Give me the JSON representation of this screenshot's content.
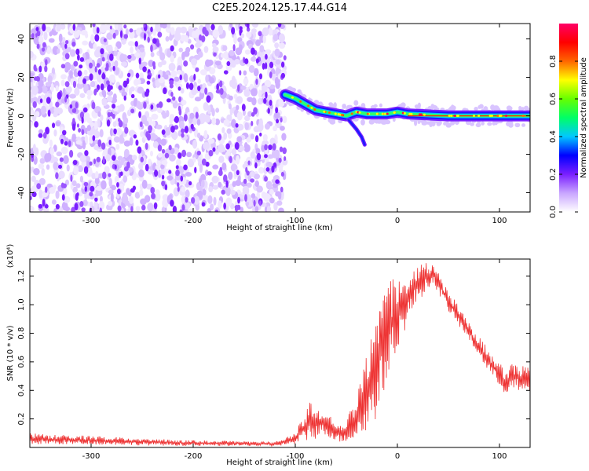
{
  "title": "C2E5.2024.125.17.44.G14",
  "chart_data": [
    {
      "type": "heatmap",
      "xlabel": "Height of straight line (km)",
      "ylabel": "Frequency (Hz)",
      "xlim": [
        -360,
        130
      ],
      "ylim": [
        -50,
        48
      ],
      "x_ticks": [
        -300,
        -200,
        -100,
        0,
        100
      ],
      "y_ticks": [
        -40,
        -20,
        0,
        20,
        40
      ],
      "noise_region_x": [
        -360,
        -110
      ],
      "signal_trace": [
        {
          "x": -110,
          "y": 11
        },
        {
          "x": -100,
          "y": 9
        },
        {
          "x": -90,
          "y": 6
        },
        {
          "x": -80,
          "y": 3
        },
        {
          "x": -70,
          "y": 2
        },
        {
          "x": -60,
          "y": 1
        },
        {
          "x": -50,
          "y": 0
        },
        {
          "x": -40,
          "y": 2
        },
        {
          "x": -30,
          "y": 1
        },
        {
          "x": -20,
          "y": 1
        },
        {
          "x": -10,
          "y": 1
        },
        {
          "x": 0,
          "y": 2
        },
        {
          "x": 10,
          "y": 1
        },
        {
          "x": 50,
          "y": 0
        },
        {
          "x": 130,
          "y": 0
        }
      ],
      "branch_trace": [
        {
          "x": -48,
          "y": -2
        },
        {
          "x": -40,
          "y": -7
        },
        {
          "x": -35,
          "y": -11
        },
        {
          "x": -32,
          "y": -15
        }
      ],
      "colorbar": {
        "label": "Normalized spectral amplitude",
        "ticks": [
          "0.0",
          "0.2",
          "0.4",
          "0.6",
          "0.8"
        ],
        "range": [
          0,
          1
        ],
        "colors": [
          "#ffffff",
          "#c9a6ff",
          "#7a1fff",
          "#0000ff",
          "#00c8ff",
          "#00ff66",
          "#66ff00",
          "#ffff00",
          "#ff6600",
          "#ff0000",
          "#ff0066"
        ]
      },
      "grid": false
    },
    {
      "type": "line",
      "xlabel": "Height of straight line (km)",
      "ylabel": "SNR (10 * v/v)",
      "y_multiplier": "(x10⁴)",
      "xlim": [
        -360,
        130
      ],
      "ylim": [
        0,
        1.32
      ],
      "x_ticks": [
        -300,
        -200,
        -100,
        0,
        100
      ],
      "y_ticks": [
        "0.2",
        "0.4",
        "0.6",
        "0.8",
        "1.0",
        "1.2"
      ],
      "color": "#ee3333",
      "series": [
        {
          "values_envelope": [
            {
              "x": -360,
              "lo": 0.02,
              "hi": 0.1
            },
            {
              "x": -300,
              "lo": 0.02,
              "hi": 0.08
            },
            {
              "x": -200,
              "lo": 0.01,
              "hi": 0.05
            },
            {
              "x": -120,
              "lo": 0.01,
              "hi": 0.04
            },
            {
              "x": -100,
              "lo": 0.02,
              "hi": 0.1
            },
            {
              "x": -85,
              "lo": 0.05,
              "hi": 0.35
            },
            {
              "x": -70,
              "lo": 0.08,
              "hi": 0.25
            },
            {
              "x": -55,
              "lo": 0.03,
              "hi": 0.15
            },
            {
              "x": -40,
              "lo": 0.05,
              "hi": 0.35
            },
            {
              "x": -30,
              "lo": 0.1,
              "hi": 0.65
            },
            {
              "x": -20,
              "lo": 0.2,
              "hi": 1.0
            },
            {
              "x": -10,
              "lo": 0.45,
              "hi": 1.15
            },
            {
              "x": 0,
              "lo": 0.7,
              "hi": 1.2
            },
            {
              "x": 20,
              "lo": 1.02,
              "hi": 1.3
            },
            {
              "x": 35,
              "lo": 1.15,
              "hi": 1.29
            },
            {
              "x": 50,
              "lo": 0.95,
              "hi": 1.1
            },
            {
              "x": 70,
              "lo": 0.75,
              "hi": 0.88
            },
            {
              "x": 90,
              "lo": 0.52,
              "hi": 0.68
            },
            {
              "x": 105,
              "lo": 0.38,
              "hi": 0.55
            },
            {
              "x": 115,
              "lo": 0.4,
              "hi": 0.6
            },
            {
              "x": 125,
              "lo": 0.35,
              "hi": 0.58
            },
            {
              "x": 130,
              "lo": 0.38,
              "hi": 0.55
            }
          ]
        }
      ],
      "grid": false
    }
  ]
}
